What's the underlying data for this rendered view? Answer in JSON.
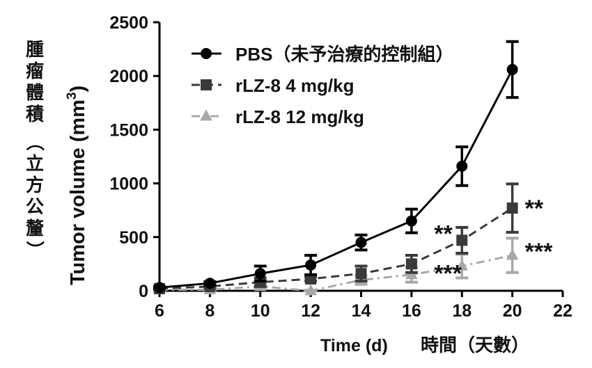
{
  "chart_data": {
    "type": "line",
    "xlabel": "Time (d)",
    "xlabel_cn": "時間（天數）",
    "ylabel": "Tumor volume (mm",
    "ylabel_sup": "3",
    "ylabel_close": ")",
    "ylabel_cn": "腫瘤體積（立方公釐）",
    "xlim": [
      6,
      22
    ],
    "ylim": [
      0,
      2500
    ],
    "xticks": [
      "6",
      "8",
      "10",
      "12",
      "14",
      "16",
      "18",
      "20",
      "22"
    ],
    "yticks": [
      "0",
      "500",
      "1000",
      "1500",
      "2000",
      "2500"
    ],
    "grid": false,
    "legend_placement": "top-left",
    "x": [
      6,
      8,
      10,
      12,
      14,
      16,
      18,
      20
    ],
    "series": [
      {
        "name": "PBS（未予治療的控制組）",
        "color": "#000000",
        "marker": "circle",
        "dash": "solid",
        "values": [
          30,
          70,
          160,
          240,
          450,
          650,
          1160,
          2060
        ],
        "errors": [
          10,
          15,
          70,
          90,
          70,
          110,
          180,
          260
        ]
      },
      {
        "name": "rLZ-8 4 mg/kg",
        "color": "#3a3a3a",
        "marker": "square",
        "dash": "dashed",
        "values": [
          20,
          40,
          80,
          110,
          160,
          250,
          470,
          770
        ],
        "errors": [
          8,
          10,
          40,
          20,
          70,
          80,
          120,
          225
        ]
      },
      {
        "name": "rLZ-8 12 mg/kg",
        "color": "#a8a8a8",
        "marker": "triangle",
        "dash": "dash-dot",
        "values": [
          10,
          10,
          40,
          0,
          100,
          150,
          230,
          330
        ],
        "errors": [
          5,
          5,
          20,
          5,
          40,
          70,
          110,
          160
        ]
      }
    ],
    "annotations": [
      {
        "text": "**",
        "series": 1,
        "x": 18
      },
      {
        "text": "**",
        "series": 1,
        "x": 20
      },
      {
        "text": "***",
        "series": 2,
        "x": 18
      },
      {
        "text": "***",
        "series": 2,
        "x": 20
      }
    ]
  }
}
